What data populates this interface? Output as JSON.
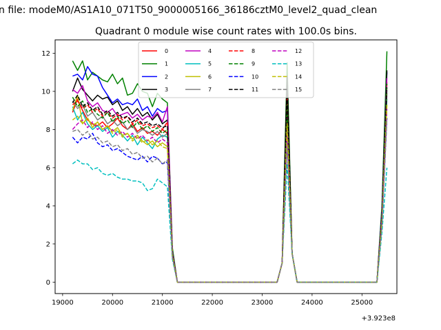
{
  "figure": {
    "suptitle": "n file: modeM0/AS1A10_071T50_9000005166_36186cztM0_level2_quad_clean",
    "title": "Quadrant 0 module wise count rates with 100.0s bins.",
    "x_offset_label": "+3.923e8"
  },
  "chart_data": {
    "type": "line",
    "title": "Quadrant 0 module wise count rates with 100.0s bins.",
    "xlabel": "",
    "ylabel": "",
    "x_offset": "+3.923e8",
    "xlim": [
      18850,
      25700
    ],
    "ylim": [
      -0.6,
      12.7
    ],
    "x_ticks": [
      19000,
      20000,
      21000,
      22000,
      23000,
      24000,
      25000
    ],
    "y_ticks": [
      0,
      2,
      4,
      6,
      8,
      10,
      12
    ],
    "x_tick_labels": [
      "19000",
      "20000",
      "21000",
      "22000",
      "23000",
      "24000",
      "25000"
    ],
    "y_tick_labels": [
      "0",
      "2",
      "4",
      "6",
      "8",
      "10",
      "12"
    ],
    "grid": false,
    "legend_position": "top-center",
    "legend_columns": 4,
    "x": [
      19200,
      19300,
      19400,
      19500,
      19600,
      19700,
      19800,
      19900,
      20000,
      20100,
      20200,
      20300,
      20400,
      20500,
      20600,
      20700,
      20800,
      20900,
      21000,
      21100,
      21200,
      21300,
      21400,
      21500,
      21600,
      21700,
      21800,
      21900,
      22000,
      22100,
      22200,
      22300,
      22400,
      22500,
      22600,
      22700,
      22800,
      22900,
      23000,
      23100,
      23200,
      23300,
      23400,
      23500,
      23600,
      23700,
      23800,
      23900,
      24000,
      24100,
      24200,
      24300,
      24400,
      24500,
      24600,
      24700,
      24800,
      24900,
      25000,
      25100,
      25200,
      25300,
      25400,
      25500
    ],
    "series": [
      {
        "name": "0",
        "color": "#ff0000",
        "dash": "solid",
        "values": [
          8.9,
          9.6,
          9.0,
          8.5,
          8.3,
          8.2,
          8.4,
          8.1,
          8.3,
          8.6,
          8.2,
          8.0,
          8.3,
          7.9,
          8.1,
          7.8,
          7.9,
          7.7,
          8.0,
          7.8,
          1.5,
          0,
          0,
          0,
          0,
          0,
          0,
          0,
          0,
          0,
          0,
          0,
          0,
          0,
          0,
          0,
          0,
          0,
          0,
          0,
          0,
          0,
          1.0,
          8.9,
          1.5,
          0,
          0,
          0,
          0,
          0,
          0,
          0,
          0,
          0,
          0,
          0,
          0,
          0,
          0,
          0,
          0,
          0,
          3.5,
          10.5
        ]
      },
      {
        "name": "1",
        "color": "#008000",
        "dash": "solid",
        "values": [
          11.6,
          11.1,
          11.6,
          10.6,
          11.0,
          10.8,
          10.6,
          10.5,
          10.9,
          10.4,
          10.7,
          9.8,
          9.9,
          10.4,
          10.0,
          9.9,
          9.2,
          9.9,
          9.6,
          9.4,
          1.8,
          0,
          0,
          0,
          0,
          0,
          0,
          0,
          0,
          0,
          0,
          0,
          0,
          0,
          0,
          0,
          0,
          0,
          0,
          0,
          0,
          0,
          1.0,
          11.5,
          1.5,
          0,
          0,
          0,
          0,
          0,
          0,
          0,
          0,
          0,
          0,
          0,
          0,
          0,
          0,
          0,
          0,
          0,
          4.0,
          12.1
        ]
      },
      {
        "name": "2",
        "color": "#0000ff",
        "dash": "solid",
        "values": [
          10.8,
          10.9,
          10.6,
          11.3,
          10.9,
          10.8,
          10.2,
          9.8,
          9.4,
          9.6,
          9.3,
          9.4,
          9.3,
          9.6,
          9.0,
          9.2,
          8.7,
          9.1,
          8.9,
          9.0,
          1.6,
          0,
          0,
          0,
          0,
          0,
          0,
          0,
          0,
          0,
          0,
          0,
          0,
          0,
          0,
          0,
          0,
          0,
          0,
          0,
          0,
          0,
          1.0,
          10.2,
          1.5,
          0,
          0,
          0,
          0,
          0,
          0,
          0,
          0,
          0,
          0,
          0,
          0,
          0,
          0,
          0,
          0,
          0,
          3.8,
          11.0
        ]
      },
      {
        "name": "3",
        "color": "#000000",
        "dash": "solid",
        "values": [
          10.0,
          10.7,
          10.1,
          9.8,
          9.5,
          9.8,
          9.6,
          9.7,
          9.3,
          9.5,
          9.0,
          9.2,
          8.8,
          9.1,
          8.7,
          8.9,
          8.5,
          8.8,
          8.3,
          8.5,
          1.6,
          0,
          0,
          0,
          0,
          0,
          0,
          0,
          0,
          0,
          0,
          0,
          0,
          0,
          0,
          0,
          0,
          0,
          0,
          0,
          0,
          0,
          1.0,
          10.8,
          1.5,
          0,
          0,
          0,
          0,
          0,
          0,
          0,
          0,
          0,
          0,
          0,
          0,
          0,
          0,
          0,
          0,
          0,
          3.7,
          11.1
        ]
      },
      {
        "name": "4",
        "color": "#bf00bf",
        "dash": "solid",
        "values": [
          10.1,
          9.9,
          10.3,
          9.5,
          9.2,
          9.4,
          9.0,
          8.9,
          9.1,
          8.7,
          8.8,
          8.9,
          8.6,
          8.8,
          8.5,
          8.7,
          8.6,
          8.9,
          8.4,
          9.2,
          1.6,
          0,
          0,
          0,
          0,
          0,
          0,
          0,
          0,
          0,
          0,
          0,
          0,
          0,
          0,
          0,
          0,
          0,
          0,
          0,
          0,
          0,
          1.0,
          8.6,
          1.5,
          0,
          0,
          0,
          0,
          0,
          0,
          0,
          0,
          0,
          0,
          0,
          0,
          0,
          0,
          0,
          0,
          0,
          3.6,
          10.7
        ]
      },
      {
        "name": "5",
        "color": "#00bfbf",
        "dash": "solid",
        "values": [
          9.2,
          8.5,
          8.9,
          8.3,
          8.0,
          8.2,
          7.9,
          8.1,
          7.6,
          7.9,
          7.7,
          7.4,
          7.7,
          7.2,
          7.6,
          7.3,
          7.0,
          7.5,
          7.7,
          7.6,
          1.4,
          0,
          0,
          0,
          0,
          0,
          0,
          0,
          0,
          0,
          0,
          0,
          0,
          0,
          0,
          0,
          0,
          0,
          0,
          0,
          0,
          0,
          1.0,
          8.1,
          1.5,
          0,
          0,
          0,
          0,
          0,
          0,
          0,
          0,
          0,
          0,
          0,
          0,
          0,
          0,
          0,
          0,
          0,
          3.3,
          9.6
        ]
      },
      {
        "name": "6",
        "color": "#bfbf00",
        "dash": "solid",
        "values": [
          9.0,
          9.8,
          8.3,
          8.6,
          8.1,
          8.4,
          8.0,
          8.2,
          7.9,
          8.1,
          7.7,
          7.8,
          7.5,
          7.7,
          7.4,
          7.2,
          7.4,
          7.1,
          7.3,
          7.1,
          1.4,
          0,
          0,
          0,
          0,
          0,
          0,
          0,
          0,
          0,
          0,
          0,
          0,
          0,
          0,
          0,
          0,
          0,
          0,
          0,
          0,
          0,
          1.0,
          7.8,
          1.5,
          0,
          0,
          0,
          0,
          0,
          0,
          0,
          0,
          0,
          0,
          0,
          0,
          0,
          0,
          0,
          0,
          0,
          3.3,
          9.3
        ]
      },
      {
        "name": "7",
        "color": "#808080",
        "dash": "solid",
        "values": [
          9.5,
          9.1,
          9.3,
          8.7,
          8.9,
          8.5,
          8.7,
          8.3,
          8.5,
          8.2,
          8.4,
          8.0,
          8.2,
          7.8,
          8.0,
          7.9,
          7.7,
          7.9,
          7.6,
          7.8,
          1.5,
          0,
          0,
          0,
          0,
          0,
          0,
          0,
          0,
          0,
          0,
          0,
          0,
          0,
          0,
          0,
          0,
          0,
          0,
          0,
          0,
          0,
          1.0,
          8.4,
          1.5,
          0,
          0,
          0,
          0,
          0,
          0,
          0,
          0,
          0,
          0,
          0,
          0,
          0,
          0,
          0,
          0,
          0,
          3.4,
          9.9
        ]
      },
      {
        "name": "8",
        "color": "#ff0000",
        "dash": "dashed",
        "values": [
          9.3,
          9.5,
          9.1,
          9.3,
          8.9,
          9.1,
          8.7,
          8.9,
          8.6,
          8.8,
          8.5,
          8.7,
          8.3,
          8.5,
          8.2,
          8.3,
          8.1,
          8.2,
          8.0,
          8.4,
          1.5,
          0,
          0,
          0,
          0,
          0,
          0,
          0,
          0,
          0,
          0,
          0,
          0,
          0,
          0,
          0,
          0,
          0,
          0,
          0,
          0,
          0,
          1.0,
          9.7,
          1.5,
          0,
          0,
          0,
          0,
          0,
          0,
          0,
          0,
          0,
          0,
          0,
          0,
          0,
          0,
          0,
          0,
          0,
          3.5,
          10.3
        ]
      },
      {
        "name": "9",
        "color": "#008000",
        "dash": "dashed",
        "values": [
          9.7,
          9.2,
          9.5,
          8.9,
          9.1,
          8.8,
          8.6,
          8.9,
          8.4,
          8.7,
          8.3,
          8.5,
          8.1,
          8.4,
          8.0,
          8.2,
          7.9,
          8.1,
          7.8,
          8.0,
          1.5,
          0,
          0,
          0,
          0,
          0,
          0,
          0,
          0,
          0,
          0,
          0,
          0,
          0,
          0,
          0,
          0,
          0,
          0,
          0,
          0,
          0,
          1.0,
          9.3,
          1.5,
          0,
          0,
          0,
          0,
          0,
          0,
          0,
          0,
          0,
          0,
          0,
          0,
          0,
          0,
          0,
          0,
          0,
          3.6,
          10.4
        ]
      },
      {
        "name": "10",
        "color": "#0000ff",
        "dash": "dashed",
        "values": [
          7.6,
          7.3,
          7.6,
          7.5,
          7.8,
          7.3,
          7.1,
          7.2,
          6.9,
          7.0,
          6.8,
          6.6,
          6.5,
          6.4,
          6.6,
          6.3,
          6.6,
          6.5,
          6.2,
          6.3,
          1.3,
          0,
          0,
          0,
          0,
          0,
          0,
          0,
          0,
          0,
          0,
          0,
          0,
          0,
          0,
          0,
          0,
          0,
          0,
          0,
          0,
          0,
          1.0,
          7.6,
          1.5,
          0,
          0,
          0,
          0,
          0,
          0,
          0,
          0,
          0,
          0,
          0,
          0,
          0,
          0,
          0,
          0,
          0,
          3.0,
          8.6
        ]
      },
      {
        "name": "11",
        "color": "#000000",
        "dash": "dashed",
        "values": [
          9.4,
          9.8,
          9.2,
          9.4,
          9.0,
          9.2,
          8.8,
          9.0,
          8.7,
          8.9,
          8.6,
          8.7,
          8.4,
          8.6,
          8.3,
          8.4,
          8.2,
          8.3,
          8.1,
          8.2,
          1.5,
          0,
          0,
          0,
          0,
          0,
          0,
          0,
          0,
          0,
          0,
          0,
          0,
          0,
          0,
          0,
          0,
          0,
          0,
          0,
          0,
          0,
          1.0,
          10.0,
          1.5,
          0,
          0,
          0,
          0,
          0,
          0,
          0,
          0,
          0,
          0,
          0,
          0,
          0,
          0,
          0,
          0,
          0,
          3.6,
          10.2
        ]
      },
      {
        "name": "12",
        "color": "#bf00bf",
        "dash": "dashed",
        "values": [
          8.0,
          8.3,
          8.5,
          8.1,
          8.4,
          8.0,
          8.2,
          7.8,
          8.0,
          7.7,
          7.9,
          7.6,
          7.8,
          7.5,
          7.7,
          7.4,
          7.6,
          7.3,
          7.5,
          7.3,
          1.4,
          0,
          0,
          0,
          0,
          0,
          0,
          0,
          0,
          0,
          0,
          0,
          0,
          0,
          0,
          0,
          0,
          0,
          0,
          0,
          0,
          0,
          1.0,
          8.0,
          1.5,
          0,
          0,
          0,
          0,
          0,
          0,
          0,
          0,
          0,
          0,
          0,
          0,
          0,
          0,
          0,
          0,
          0,
          3.3,
          9.1
        ]
      },
      {
        "name": "13",
        "color": "#00bfbf",
        "dash": "dashed",
        "values": [
          6.2,
          6.4,
          6.2,
          6.2,
          5.9,
          6.0,
          5.7,
          5.6,
          5.7,
          5.5,
          5.4,
          5.4,
          5.3,
          5.3,
          5.2,
          4.8,
          4.9,
          5.4,
          5.2,
          5.0,
          1.2,
          0,
          0,
          0,
          0,
          0,
          0,
          0,
          0,
          0,
          0,
          0,
          0,
          0,
          0,
          0,
          0,
          0,
          0,
          0,
          0,
          0,
          1.0,
          6.2,
          1.5,
          0,
          0,
          0,
          0,
          0,
          0,
          0,
          0,
          0,
          0,
          0,
          0,
          0,
          0,
          0,
          0,
          0,
          2.6,
          6.0
        ]
      },
      {
        "name": "14",
        "color": "#bfbf00",
        "dash": "dashed",
        "values": [
          8.5,
          8.7,
          8.3,
          8.6,
          8.2,
          8.4,
          8.0,
          8.2,
          7.8,
          8.0,
          7.6,
          7.8,
          7.4,
          7.6,
          7.3,
          7.5,
          7.2,
          7.4,
          7.1,
          7.0,
          1.4,
          0,
          0,
          0,
          0,
          0,
          0,
          0,
          0,
          0,
          0,
          0,
          0,
          0,
          0,
          0,
          0,
          0,
          0,
          0,
          0,
          0,
          1.0,
          8.3,
          1.5,
          0,
          0,
          0,
          0,
          0,
          0,
          0,
          0,
          0,
          0,
          0,
          0,
          0,
          0,
          0,
          0,
          0,
          3.2,
          9.3
        ]
      },
      {
        "name": "15",
        "color": "#808080",
        "dash": "dashed",
        "values": [
          7.9,
          8.0,
          7.7,
          7.9,
          7.5,
          7.6,
          7.3,
          7.4,
          7.1,
          7.2,
          6.9,
          7.0,
          6.7,
          6.8,
          6.5,
          6.6,
          6.3,
          6.5,
          6.2,
          6.4,
          1.3,
          0,
          0,
          0,
          0,
          0,
          0,
          0,
          0,
          0,
          0,
          0,
          0,
          0,
          0,
          0,
          0,
          0,
          0,
          0,
          0,
          0,
          1.0,
          7.1,
          1.5,
          0,
          0,
          0,
          0,
          0,
          0,
          0,
          0,
          0,
          0,
          0,
          0,
          0,
          0,
          0,
          0,
          0,
          2.9,
          8.6
        ]
      }
    ]
  }
}
